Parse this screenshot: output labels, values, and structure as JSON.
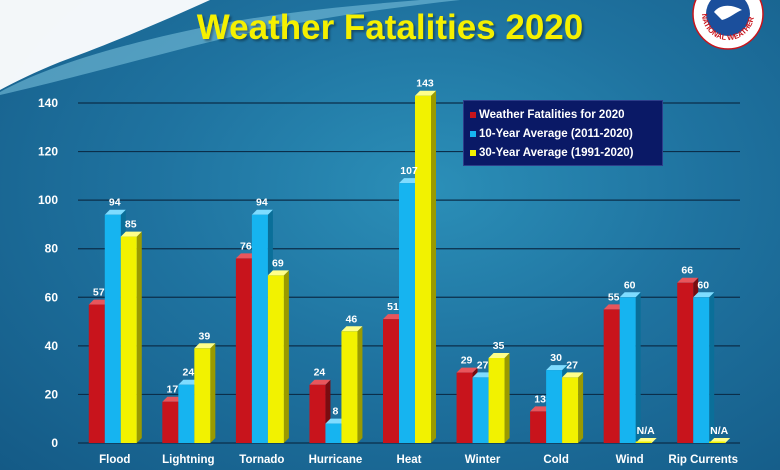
{
  "colors": {
    "series_2020": "#c8141c",
    "series_10yr": "#16b4f0",
    "series_30yr": "#f2f200",
    "title": "#f5f000"
  },
  "logo": {
    "text": "NATIONAL WEATHER SERVICE"
  },
  "chart_data": {
    "type": "bar",
    "title": "Weather Fatalities 2020",
    "categories": [
      "Flood",
      "Lightning",
      "Tornado",
      "Hurricane",
      "Heat",
      "Winter",
      "Cold",
      "Wind",
      "Rip Currents"
    ],
    "series": [
      {
        "name": "Weather Fatalities for 2020",
        "values": [
          57,
          17,
          76,
          24,
          51,
          29,
          13,
          55,
          66
        ],
        "labels": [
          "57",
          "17",
          "76",
          "24",
          "51",
          "29",
          "13",
          "55",
          "66"
        ]
      },
      {
        "name": "10-Year Average (2011-2020)",
        "values": [
          94,
          24,
          94,
          8,
          107,
          27,
          30,
          60,
          60
        ],
        "labels": [
          "94",
          "24",
          "94",
          "8",
          "107",
          "27",
          "30",
          "60",
          "60"
        ]
      },
      {
        "name": "30-Year Average (1991-2020)",
        "values": [
          85,
          39,
          69,
          46,
          143,
          35,
          27,
          null,
          null
        ],
        "labels": [
          "85",
          "39",
          "69",
          "46",
          "143",
          "35",
          "27",
          "N/A",
          "N/A"
        ]
      }
    ],
    "yticks": [
      0,
      20,
      40,
      60,
      80,
      100,
      120,
      140
    ],
    "ylim": [
      0,
      150
    ],
    "grid": true,
    "legend_position": "top-right"
  }
}
